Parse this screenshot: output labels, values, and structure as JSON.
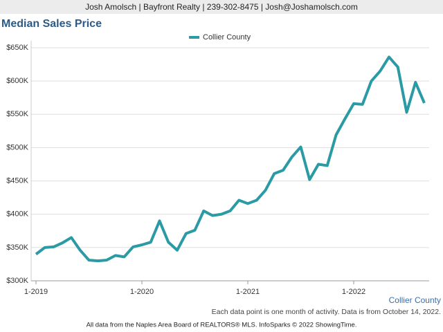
{
  "header": "Josh Amolsch | Bayfront Realty | 239-302-8475 | Josh@Joshamolsch.com",
  "chart_data": {
    "type": "line",
    "title": "Median Sales Price",
    "categories": [
      "1-2019",
      null,
      null,
      null,
      null,
      null,
      null,
      null,
      null,
      null,
      null,
      null,
      "1-2020",
      null,
      null,
      null,
      null,
      null,
      null,
      null,
      null,
      null,
      null,
      null,
      "1-2021",
      null,
      null,
      null,
      null,
      null,
      null,
      null,
      null,
      null,
      null,
      null,
      "1-2022",
      null,
      null,
      null,
      null,
      null,
      null,
      null,
      null
    ],
    "series": [
      {
        "name": "Collier County",
        "color": "#2a9aa4",
        "values": [
          340000,
          350000,
          351000,
          357000,
          365000,
          346000,
          331000,
          330000,
          331000,
          338000,
          336000,
          351000,
          354000,
          358000,
          390000,
          358000,
          346000,
          371000,
          376000,
          405000,
          398000,
          400000,
          405000,
          421000,
          416000,
          421000,
          436000,
          461000,
          466000,
          486000,
          501000,
          452000,
          475000,
          473000,
          519000,
          543000,
          566000,
          565000,
          600000,
          615000,
          636000,
          621000,
          553000,
          598000,
          567000
        ]
      }
    ],
    "ylim": [
      300000,
      650000
    ],
    "yticks": [
      {
        "value": 300000,
        "label": "$300K"
      },
      {
        "value": 350000,
        "label": "$350K"
      },
      {
        "value": 400000,
        "label": "$400K"
      },
      {
        "value": 450000,
        "label": "$450K"
      },
      {
        "value": 500000,
        "label": "$500K"
      },
      {
        "value": 550000,
        "label": "$550K"
      },
      {
        "value": 600000,
        "label": "$600K"
      },
      {
        "value": 650000,
        "label": "$650K"
      }
    ],
    "grid": true,
    "legend": "top",
    "source_label": "Collier County",
    "note": "Each data point is one month of activity. Data is from October 14, 2022.",
    "footer": "All data from the Naples Area Board of REALTORS® MLS. InfoSparks © 2022 ShowingTime."
  }
}
